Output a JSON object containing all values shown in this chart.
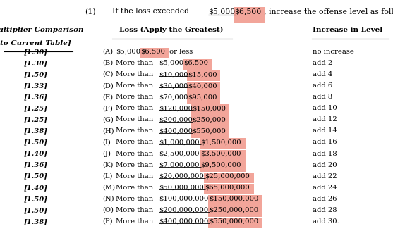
{
  "title_num": "(1)",
  "title_text_plain": "If the loss exceeded ",
  "title_struck": "$5,000",
  "title_new": "$6,500",
  "title_end": ", increase the offense level as follows:",
  "col1_header_line1": "[Multiplier Comparison",
  "col1_header_line2": "to Current Table]",
  "col2_header": "Loss (Apply the Greatest)",
  "col3_header": "Increase in Level",
  "multipliers": [
    "[1.30]",
    "[1.30]",
    "[1.50]",
    "[1.33]",
    "[1.36]",
    "[1.25]",
    "[1.25]",
    "[1.38]",
    "[1.50]",
    "[1.40]",
    "[1.36]",
    "[1.50]",
    "[1.40]",
    "[1.50]",
    "[1.50]",
    "[1.38]"
  ],
  "letters": [
    "(A)",
    "(B)",
    "(C)",
    "(D)",
    "(E)",
    "(F)",
    "(G)",
    "(H)",
    "(I)",
    "(J)",
    "(K)",
    "(L)",
    "(M)",
    "(N)",
    "(O)",
    "(P)"
  ],
  "loss_prefix": [
    "",
    "More than ",
    "More than ",
    "More than ",
    "More than ",
    "More than ",
    "More than ",
    "More than ",
    "More than ",
    "More than ",
    "More than ",
    "More than ",
    "More than ",
    "More than ",
    "More than ",
    "More than "
  ],
  "loss_struck": [
    "$5,000",
    "$5,000",
    "$10,000",
    "$30,000",
    "$70,000",
    "$120,000",
    "$200,000",
    "$400,000",
    "$1,000,000",
    "$2,500,000",
    "$7,000,000",
    "$20,000,000",
    "$50,000,000",
    "$100,000,000",
    "$200,000,000",
    "$400,000,000"
  ],
  "loss_new": [
    "$6,500",
    "$6,500",
    "$15,000",
    "$40,000",
    "$95,000",
    "$150,000",
    "$250,000",
    "$550,000",
    "$1,500,000",
    "$3,500,000",
    "$9,500,000",
    "$25,000,000",
    "$65,000,000",
    "$150,000,000",
    "$250,000,000",
    "$550,000,000"
  ],
  "loss_suffix": [
    " or less",
    "",
    "",
    "",
    "",
    "",
    "",
    "",
    "",
    "",
    "",
    "",
    "",
    "",
    "",
    ""
  ],
  "increase": [
    "no increase",
    "add 2",
    "add 4",
    "add 6",
    "add 8",
    "add 10",
    "add 12",
    "add 14",
    "add 16",
    "add 18",
    "add 20",
    "add 22",
    "add 24",
    "add 26",
    "add 28",
    "add 30."
  ],
  "highlight_color": "#f2a59a",
  "bg_color": "#ffffff",
  "font_size": 7.2,
  "title_font_size": 7.8,
  "header_font_size": 7.5
}
